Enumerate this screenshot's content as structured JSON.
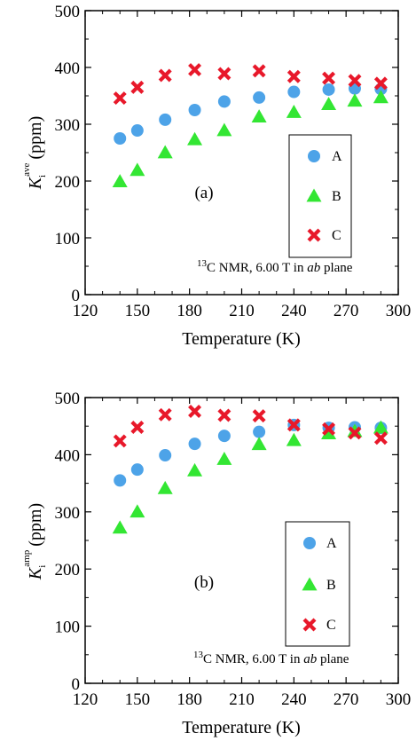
{
  "colors": {
    "A": "#4da3e8",
    "B": "#33e633",
    "C": "#e8182a",
    "frame": "#000000"
  },
  "chart_data": [
    {
      "type": "scatter",
      "panel_label": "(a)",
      "xlabel": "Temperature (K)",
      "ylabel": {
        "symbol": "K",
        "subscript": "i",
        "superscript": "ave",
        "unit": "(ppm)"
      },
      "xlim": [
        120,
        300
      ],
      "ylim": [
        0,
        500
      ],
      "xticks": [
        "120",
        "150",
        "180",
        "210",
        "240",
        "270",
        "300"
      ],
      "yticks": [
        "0",
        "100",
        "200",
        "300",
        "400",
        "500"
      ],
      "legend_position": "right",
      "annotation": {
        "pre": "13",
        "mid": "C NMR, 6.00 T in ",
        "ital": "ab",
        "post": " plane"
      },
      "series": [
        {
          "name": "A",
          "marker": "circle",
          "color_key": "A",
          "x": [
            140,
            150,
            166,
            183,
            200,
            220,
            240,
            260,
            275,
            290
          ],
          "y": [
            275,
            289,
            308,
            325,
            340,
            347,
            357,
            361,
            363,
            362
          ]
        },
        {
          "name": "B",
          "marker": "triangle",
          "color_key": "B",
          "x": [
            140,
            150,
            166,
            183,
            200,
            220,
            240,
            260,
            275,
            290
          ],
          "y": [
            199,
            219,
            250,
            273,
            289,
            313,
            321,
            335,
            341,
            347
          ]
        },
        {
          "name": "C",
          "marker": "x",
          "color_key": "C",
          "x": [
            140,
            150,
            166,
            183,
            200,
            220,
            240,
            260,
            275,
            290
          ],
          "y": [
            346,
            365,
            386,
            396,
            389,
            394,
            384,
            381,
            377,
            372
          ]
        }
      ]
    },
    {
      "type": "scatter",
      "panel_label": "(b)",
      "xlabel": "Temperature (K)",
      "ylabel": {
        "symbol": "K",
        "subscript": "i",
        "superscript": "amp",
        "unit": "(ppm)"
      },
      "xlim": [
        120,
        300
      ],
      "ylim": [
        0,
        500
      ],
      "xticks": [
        "120",
        "150",
        "180",
        "210",
        "240",
        "270",
        "300"
      ],
      "yticks": [
        "0",
        "100",
        "200",
        "300",
        "400",
        "500"
      ],
      "legend_position": "right",
      "annotation": {
        "pre": "13",
        "mid": "C NMR, 6.00 T in ",
        "ital": "ab",
        "post": " plane"
      },
      "series": [
        {
          "name": "A",
          "marker": "circle",
          "color_key": "A",
          "x": [
            140,
            150,
            166,
            183,
            200,
            220,
            240,
            260,
            275,
            290
          ],
          "y": [
            355,
            374,
            399,
            419,
            433,
            440,
            452,
            447,
            448,
            447
          ]
        },
        {
          "name": "B",
          "marker": "triangle",
          "color_key": "B",
          "x": [
            140,
            150,
            166,
            183,
            200,
            220,
            240,
            260,
            275,
            290
          ],
          "y": [
            272,
            300,
            341,
            372,
            392,
            418,
            425,
            437,
            441,
            447
          ]
        },
        {
          "name": "C",
          "marker": "x",
          "color_key": "C",
          "x": [
            140,
            150,
            166,
            183,
            200,
            220,
            240,
            260,
            275,
            290
          ],
          "y": [
            424,
            448,
            470,
            476,
            469,
            468,
            452,
            445,
            438,
            429
          ]
        }
      ]
    }
  ]
}
